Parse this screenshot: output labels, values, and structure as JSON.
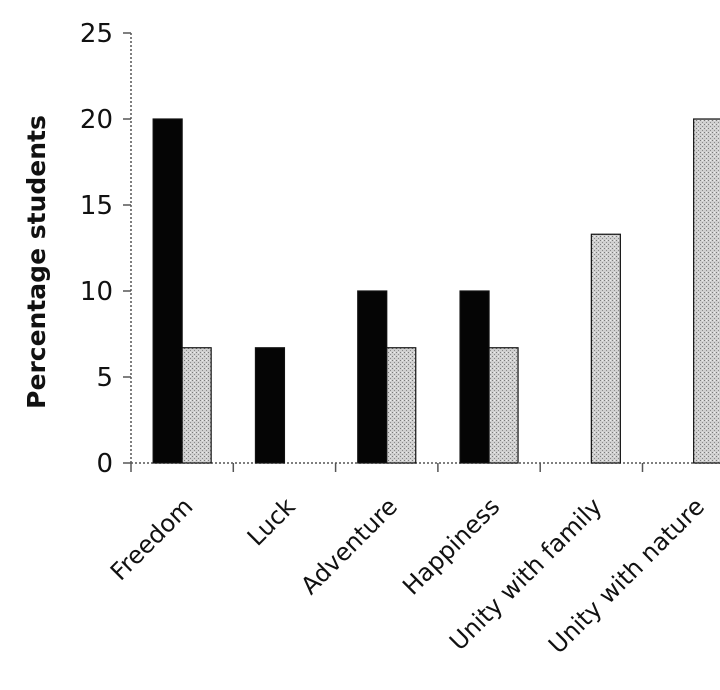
{
  "chart_data": {
    "type": "bar",
    "categories": [
      "Freedom",
      "Luck",
      "Adventure",
      "Happiness",
      "Unity with family",
      "Unity with nature"
    ],
    "series": [
      {
        "values": [
          20,
          6.7,
          10,
          10,
          0,
          0
        ],
        "color": "#050505"
      },
      {
        "values": [
          6.7,
          0,
          6.7,
          6.7,
          13.3,
          20
        ],
        "color": "#c8c8c8",
        "pattern": "stipple"
      }
    ],
    "ylabel": "Percentage students",
    "xlabel": "",
    "ylim": [
      0,
      25
    ],
    "yticks": [
      0,
      5,
      10,
      15,
      20,
      25
    ],
    "grid": false,
    "legend": "none"
  }
}
